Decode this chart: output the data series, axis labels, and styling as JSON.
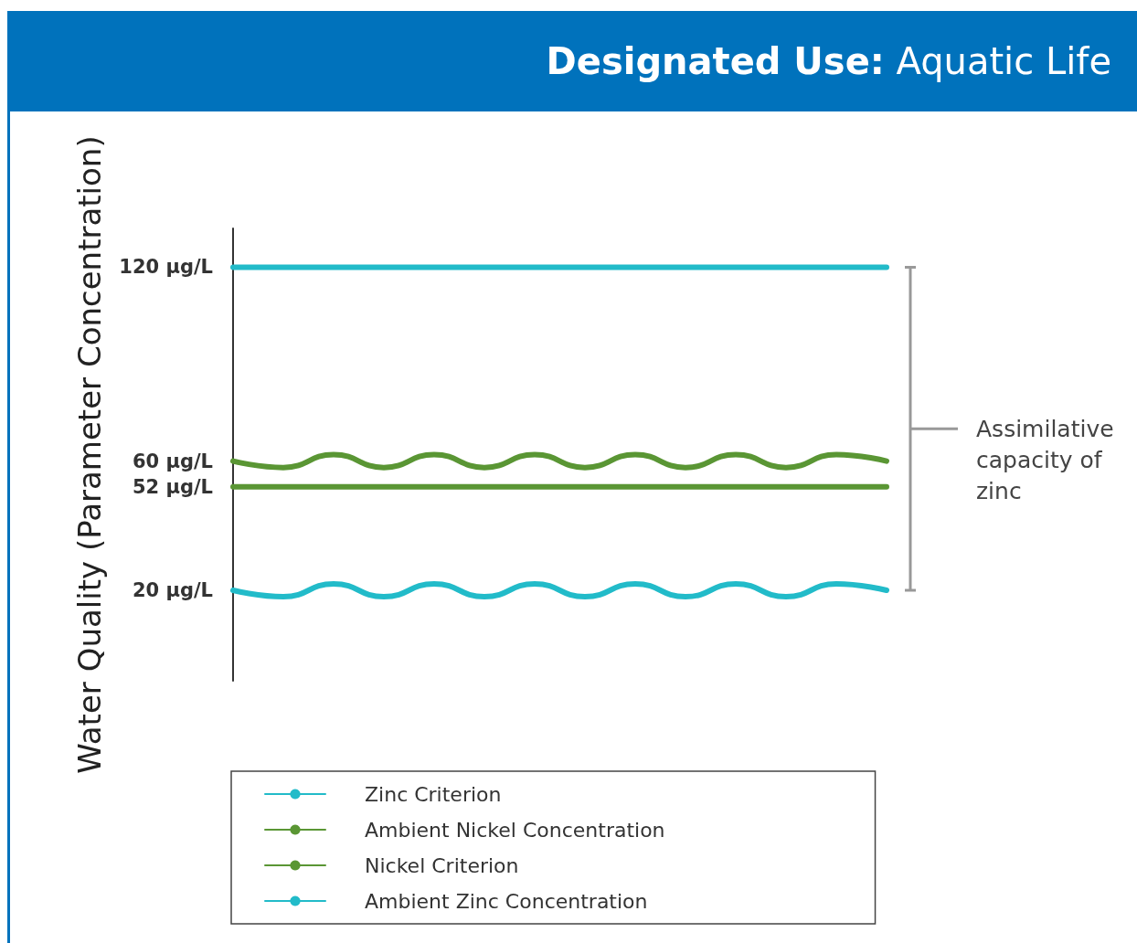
{
  "chart_data": {
    "type": "line",
    "title": "Designated Use: Aquatic Life",
    "ylabel": "Water Quality (Parameter Concentration)",
    "categories": [
      null,
      null,
      null,
      null,
      null,
      null,
      null,
      null,
      null,
      null,
      null,
      null,
      null,
      null
    ],
    "series": [
      {
        "name": "Zinc Criterion",
        "color": "#22bbc9",
        "values": [
          120,
          120,
          120,
          120,
          120,
          120,
          120,
          120,
          120,
          120,
          120,
          120,
          120,
          120
        ]
      },
      {
        "name": "Ambient Nickel Concentration",
        "color": "#5a9634",
        "values": [
          60,
          58,
          62,
          58,
          62,
          58,
          62,
          58,
          62,
          58,
          62,
          58,
          62,
          60
        ]
      },
      {
        "name": "Nickel Criterion",
        "color": "#5a9634",
        "values": [
          52,
          52,
          52,
          52,
          52,
          52,
          52,
          52,
          52,
          52,
          52,
          52,
          52,
          52
        ]
      },
      {
        "name": "Ambient Zinc Concentration",
        "color": "#22bbc9",
        "values": [
          20,
          18,
          22,
          18,
          22,
          18,
          22,
          18,
          22,
          18,
          22,
          18,
          22,
          20
        ]
      }
    ],
    "ylim": [
      -8,
      132
    ],
    "yticks": [
      {
        "value": 20,
        "label": "20 µg/L"
      },
      {
        "value": 52,
        "label": "52 µg/L"
      },
      {
        "value": 60,
        "label": "60 µg/L"
      },
      {
        "value": 120,
        "label": "120 µg/L"
      }
    ],
    "annotations": [
      "Assimilative capacity of zinc"
    ],
    "legend": "bottom",
    "grid": false,
    "marker": "none",
    "line_style": "solid",
    "tick_labels": "y"
  }
}
